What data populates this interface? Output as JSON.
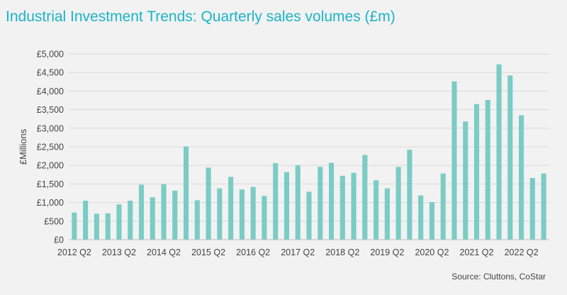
{
  "title": "Industrial Investment Trends: Quarterly sales volumes (£m)",
  "source": "Source: Cluttons, CoStar",
  "colors": {
    "bar": "#7accc4",
    "title": "#1bb4c8",
    "grid": "#d9d9d9",
    "axis": "#bfbfbf",
    "background": "#f2f2f2"
  },
  "chart_data": {
    "type": "bar",
    "title": "Industrial Investment Trends: Quarterly sales volumes (£m)",
    "xlabel": "",
    "ylabel": "£Millions",
    "ylim": [
      0,
      5000
    ],
    "yticks": [
      0,
      500,
      1000,
      1500,
      2000,
      2500,
      3000,
      3500,
      4000,
      4500,
      5000
    ],
    "ytick_labels": [
      "£0",
      "£500",
      "£1,000",
      "£1,500",
      "£2,000",
      "£2,500",
      "£3,000",
      "£3,500",
      "£4,000",
      "£4,500",
      "£5,000"
    ],
    "grid": true,
    "legend": "none",
    "categories": [
      "2012 Q2",
      "2012 Q3",
      "2012 Q4",
      "2013 Q1",
      "2013 Q2",
      "2013 Q3",
      "2013 Q4",
      "2014 Q1",
      "2014 Q2",
      "2014 Q3",
      "2014 Q4",
      "2015 Q1",
      "2015 Q2",
      "2015 Q3",
      "2015 Q4",
      "2016 Q1",
      "2016 Q2",
      "2016 Q3",
      "2016 Q4",
      "2017 Q1",
      "2017 Q2",
      "2017 Q3",
      "2017 Q4",
      "2018 Q1",
      "2018 Q2",
      "2018 Q3",
      "2018 Q4",
      "2019 Q1",
      "2019 Q2",
      "2019 Q3",
      "2019 Q4",
      "2020 Q1",
      "2020 Q2",
      "2020 Q3",
      "2020 Q4",
      "2021 Q1",
      "2021 Q2",
      "2021 Q3",
      "2021 Q4",
      "2022 Q1",
      "2022 Q2",
      "2022 Q3",
      "2022 Q4"
    ],
    "shown_category_labels": [
      "2012 Q2",
      "2013 Q2",
      "2014 Q2",
      "2015 Q2",
      "2016 Q2",
      "2017 Q2",
      "2018 Q2",
      "2019 Q2",
      "2020 Q2",
      "2021 Q2",
      "2022 Q2"
    ],
    "values": [
      730,
      1050,
      700,
      710,
      950,
      1050,
      1480,
      1140,
      1490,
      1320,
      2510,
      1060,
      1940,
      1380,
      1690,
      1350,
      1420,
      1180,
      2060,
      1820,
      2000,
      1290,
      1960,
      2070,
      1720,
      1800,
      2280,
      1600,
      1380,
      1960,
      2420,
      1190,
      1010,
      1780,
      4260,
      3180,
      3650,
      3760,
      4720,
      4420,
      3350,
      1660,
      1780
    ]
  }
}
